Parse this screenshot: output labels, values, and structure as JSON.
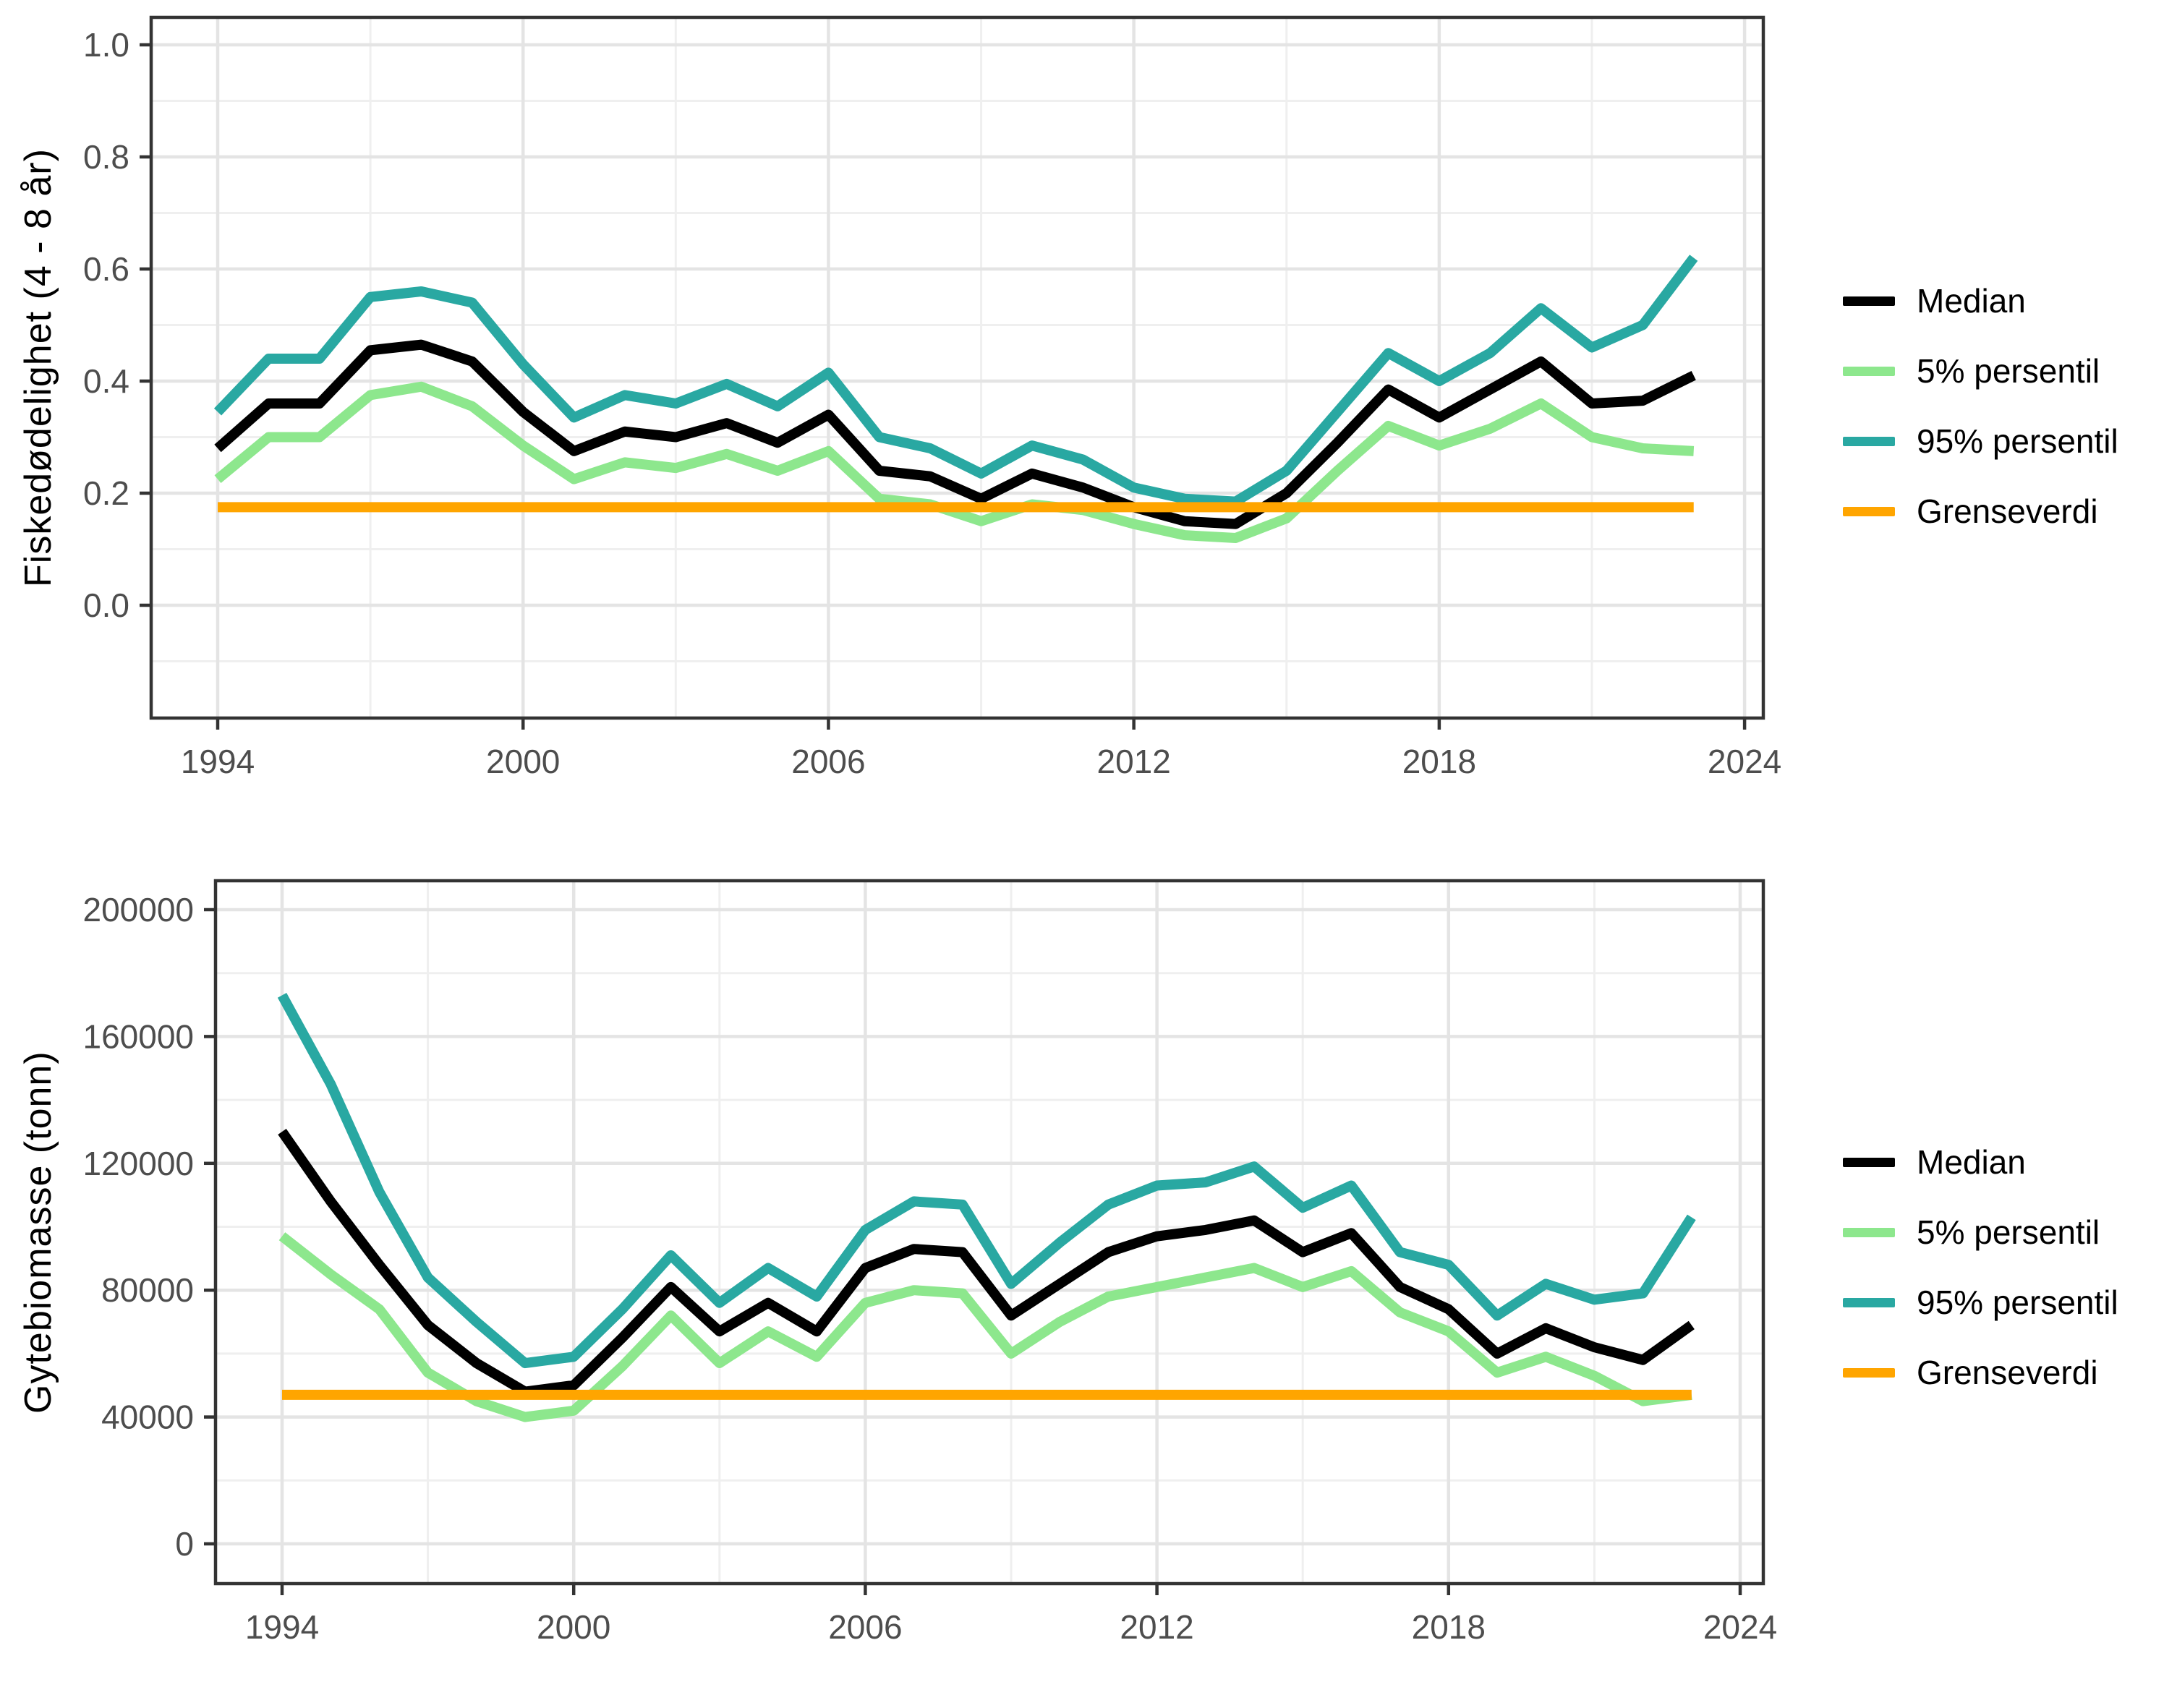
{
  "page": {
    "background": "#ffffff"
  },
  "colors": {
    "median": "#000000",
    "p5": "#8DE78D",
    "p95": "#29A8A2",
    "grenseverdi": "#FFA500",
    "grid_major": "#E4E4E4",
    "grid_minor": "#EFEFEF",
    "panel_border": "#333333",
    "tick_text": "#4D4D4D"
  },
  "legend": {
    "items": [
      {
        "label": "Median",
        "color": "#000000"
      },
      {
        "label": "5% persentil",
        "color": "#8DE78D"
      },
      {
        "label": "95% persentil",
        "color": "#29A8A2"
      },
      {
        "label": "Grenseverdi",
        "color": "#FFA500"
      }
    ]
  },
  "chart_data": [
    {
      "type": "line",
      "title": "",
      "xlabel": "",
      "ylabel": "Fiskedødelighet (4 - 8 år)",
      "x": [
        1994,
        1995,
        1996,
        1997,
        1998,
        1999,
        2000,
        2001,
        2002,
        2003,
        2004,
        2005,
        2006,
        2007,
        2008,
        2009,
        2010,
        2011,
        2012,
        2013,
        2014,
        2015,
        2016,
        2017,
        2018,
        2019,
        2020,
        2021,
        2022,
        2023
      ],
      "series": [
        {
          "name": "Median",
          "color": "#000000",
          "values": [
            0.28,
            0.36,
            0.36,
            0.455,
            0.465,
            0.435,
            0.345,
            0.275,
            0.31,
            0.3,
            0.325,
            0.29,
            0.34,
            0.24,
            0.23,
            0.19,
            0.235,
            0.21,
            0.175,
            0.15,
            0.145,
            0.2,
            0.29,
            0.385,
            0.335,
            0.385,
            0.435,
            0.36,
            0.365,
            0.41
          ]
        },
        {
          "name": "5% persentil",
          "color": "#8DE78D",
          "values": [
            0.225,
            0.3,
            0.3,
            0.375,
            0.39,
            0.355,
            0.285,
            0.225,
            0.255,
            0.245,
            0.27,
            0.24,
            0.275,
            0.19,
            0.18,
            0.15,
            0.18,
            0.17,
            0.145,
            0.125,
            0.12,
            0.155,
            0.24,
            0.32,
            0.285,
            0.315,
            0.36,
            0.3,
            0.28,
            0.275
          ]
        },
        {
          "name": "95% persentil",
          "color": "#29A8A2",
          "values": [
            0.345,
            0.44,
            0.44,
            0.55,
            0.56,
            0.54,
            0.43,
            0.335,
            0.375,
            0.36,
            0.395,
            0.355,
            0.415,
            0.3,
            0.28,
            0.235,
            0.285,
            0.26,
            0.21,
            0.19,
            0.185,
            0.24,
            0.345,
            0.45,
            0.4,
            0.45,
            0.53,
            0.46,
            0.5,
            0.62
          ]
        },
        {
          "name": "Grenseverdi",
          "color": "#FFA500",
          "constant": 0.175
        }
      ],
      "ylim": [
        -0.2,
        1.049
      ],
      "yticks": [
        0.0,
        0.2,
        0.4,
        0.6,
        0.8,
        1.0
      ],
      "ytick_labels": [
        "0.0",
        "0.2",
        "0.4",
        "0.6",
        "0.8",
        "1.0"
      ],
      "yticks_minor": [
        -0.1,
        0.1,
        0.3,
        0.5,
        0.7,
        0.9
      ],
      "xticks": [
        1994,
        2000,
        2006,
        2012,
        2018,
        2024
      ],
      "xticks_minor": [
        1997,
        2003,
        2009,
        2015,
        2021
      ],
      "xlim": [
        1992.69,
        2024.37
      ],
      "grid": true,
      "legend_position": "right"
    },
    {
      "type": "line",
      "title": "",
      "xlabel": "",
      "ylabel": "Gytebiomasse (tonn)",
      "x": [
        1994,
        1995,
        1996,
        1997,
        1998,
        1999,
        2000,
        2001,
        2002,
        2003,
        2004,
        2005,
        2006,
        2007,
        2008,
        2009,
        2010,
        2011,
        2012,
        2013,
        2014,
        2015,
        2016,
        2017,
        2018,
        2019,
        2020,
        2021,
        2022,
        2023
      ],
      "series": [
        {
          "name": "Median",
          "color": "#000000",
          "values": [
            130000,
            108000,
            88000,
            69000,
            57000,
            48000,
            50000,
            65000,
            81000,
            67000,
            76000,
            67000,
            87000,
            93000,
            92000,
            72000,
            82000,
            92000,
            97000,
            99000,
            102000,
            92000,
            98000,
            81000,
            74000,
            60000,
            68000,
            62000,
            58000,
            69000
          ]
        },
        {
          "name": "5% persentil",
          "color": "#8DE78D",
          "values": [
            97000,
            85000,
            74000,
            54000,
            45000,
            40000,
            42000,
            56000,
            72000,
            57000,
            67000,
            59000,
            76000,
            80000,
            79000,
            60000,
            70000,
            78000,
            81000,
            84000,
            87000,
            81000,
            86000,
            73000,
            67000,
            54000,
            59000,
            53000,
            45000,
            47000
          ]
        },
        {
          "name": "95% persentil",
          "color": "#29A8A2",
          "values": [
            173000,
            145000,
            111000,
            84000,
            70000,
            57000,
            59000,
            74000,
            91000,
            76000,
            87000,
            78000,
            99000,
            108000,
            107000,
            82000,
            95000,
            107000,
            113000,
            114000,
            119000,
            106000,
            113000,
            92000,
            88000,
            72000,
            82000,
            77000,
            79000,
            103000
          ]
        },
        {
          "name": "Grenseverdi",
          "color": "#FFA500",
          "constant": 47000
        }
      ],
      "ylim": [
        -12500,
        209000
      ],
      "yticks": [
        0,
        40000,
        80000,
        120000,
        160000,
        200000
      ],
      "ytick_labels": [
        "0",
        "40000",
        "80000",
        "120000",
        "160000",
        "200000"
      ],
      "yticks_minor": [
        20000,
        60000,
        100000,
        140000,
        180000
      ],
      "xticks": [
        1994,
        2000,
        2006,
        2012,
        2018,
        2024
      ],
      "xticks_minor": [
        1997,
        2003,
        2009,
        2015,
        2021
      ],
      "xlim": [
        1992.6,
        2024.5
      ],
      "grid": true,
      "legend_position": "right"
    }
  ]
}
